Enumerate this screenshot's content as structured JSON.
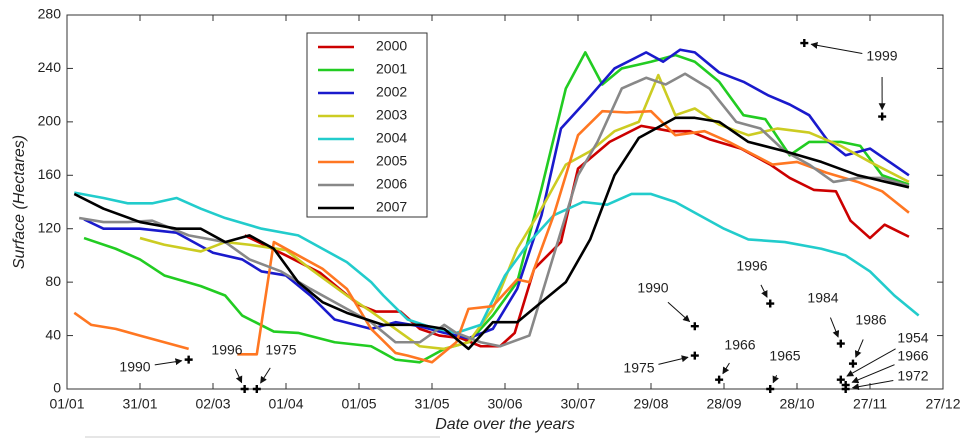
{
  "chart_data": {
    "type": "line",
    "xlabel": "Date over the years",
    "ylabel": "Surface (Hectares)",
    "xlim": [
      0,
      360
    ],
    "ylim": [
      0,
      280
    ],
    "xticks": [
      {
        "value": 0,
        "label": "01/01"
      },
      {
        "value": 30,
        "label": "31/01"
      },
      {
        "value": 60,
        "label": "02/03"
      },
      {
        "value": 90,
        "label": "01/04"
      },
      {
        "value": 120,
        "label": "01/05"
      },
      {
        "value": 150,
        "label": "31/05"
      },
      {
        "value": 180,
        "label": "30/06"
      },
      {
        "value": 210,
        "label": "30/07"
      },
      {
        "value": 240,
        "label": "29/08"
      },
      {
        "value": 270,
        "label": "28/09"
      },
      {
        "value": 300,
        "label": "28/10"
      },
      {
        "value": 330,
        "label": "27/11"
      },
      {
        "value": 360,
        "label": "27/12"
      }
    ],
    "yticks": [
      0,
      40,
      80,
      120,
      160,
      200,
      240,
      280
    ],
    "series": [
      {
        "name": "2000",
        "color": "#cc0000",
        "x": [
          73,
          90,
          104,
          112,
          120,
          127,
          137,
          145,
          153,
          162,
          170,
          178,
          184,
          192,
          203,
          210,
          223,
          236,
          248,
          256,
          264,
          277,
          289,
          297,
          307,
          316,
          322,
          330,
          336,
          346
        ],
        "values": [
          115,
          100,
          87,
          75,
          63,
          58,
          58,
          45,
          40,
          38,
          32,
          32,
          42,
          90,
          110,
          165,
          185,
          197,
          193,
          193,
          187,
          180,
          168,
          158,
          149,
          148,
          126,
          113,
          123,
          114
        ]
      },
      {
        "name": "2001",
        "color": "#22cc22",
        "x": [
          7,
          20,
          30,
          40,
          55,
          65,
          72,
          85,
          95,
          110,
          125,
          135,
          145,
          155,
          165,
          175,
          185,
          195,
          205,
          213,
          220,
          228,
          240,
          250,
          258,
          268,
          278,
          287,
          297,
          305,
          318,
          326,
          335,
          346
        ],
        "values": [
          113,
          105,
          97,
          85,
          77,
          70,
          55,
          43,
          42,
          35,
          32,
          22,
          20,
          30,
          35,
          55,
          80,
          150,
          225,
          252,
          228,
          240,
          245,
          250,
          245,
          230,
          205,
          202,
          175,
          185,
          185,
          182,
          160,
          153
        ]
      },
      {
        "name": "2002",
        "color": "#1a1acc",
        "x": [
          7,
          15,
          30,
          45,
          60,
          72,
          80,
          90,
          100,
          110,
          125,
          135,
          145,
          155,
          165,
          175,
          185,
          195,
          203,
          213,
          225,
          238,
          245,
          252,
          258,
          268,
          278,
          288,
          297,
          305,
          313,
          320,
          330,
          346
        ],
        "values": [
          127,
          120,
          120,
          117,
          102,
          97,
          88,
          85,
          70,
          52,
          45,
          50,
          47,
          42,
          38,
          45,
          75,
          130,
          195,
          215,
          240,
          252,
          245,
          254,
          252,
          237,
          230,
          220,
          213,
          205,
          185,
          175,
          180,
          160
        ]
      },
      {
        "name": "2003",
        "color": "#cccc22",
        "x": [
          30,
          40,
          55,
          65,
          75,
          90,
          100,
          115,
          125,
          135,
          145,
          155,
          165,
          175,
          185,
          195,
          205,
          215,
          225,
          235,
          243,
          250,
          258,
          268,
          280,
          292,
          305,
          318,
          330,
          346
        ],
        "values": [
          113,
          108,
          103,
          110,
          108,
          104,
          90,
          70,
          58,
          45,
          32,
          30,
          35,
          60,
          105,
          135,
          168,
          178,
          193,
          200,
          235,
          205,
          210,
          198,
          190,
          195,
          192,
          182,
          170,
          155
        ]
      },
      {
        "name": "2004",
        "color": "#22cccc",
        "x": [
          3,
          15,
          25,
          35,
          45,
          55,
          65,
          80,
          95,
          105,
          115,
          125,
          130,
          140,
          150,
          160,
          170,
          180,
          190,
          200,
          212,
          222,
          232,
          240,
          250,
          260,
          270,
          280,
          295,
          310,
          320,
          330,
          340,
          350
        ],
        "values": [
          147,
          143,
          139,
          139,
          143,
          135,
          128,
          120,
          115,
          105,
          95,
          80,
          70,
          52,
          46,
          42,
          48,
          85,
          110,
          130,
          140,
          138,
          146,
          146,
          140,
          130,
          120,
          112,
          110,
          105,
          100,
          88,
          70,
          55
        ]
      },
      {
        "name": "2005",
        "color": "#ff7722",
        "x": [
          3,
          10,
          20,
          30,
          40,
          50,
          60,
          70,
          78,
          85,
          95,
          105,
          115,
          125,
          135,
          140,
          150,
          160,
          165,
          175,
          185,
          190,
          200,
          210,
          220,
          230,
          240,
          250,
          262,
          272,
          290,
          300,
          312,
          325,
          335,
          346
        ],
        "values": [
          57,
          48,
          45,
          40,
          35,
          30,
          null,
          26,
          26,
          110,
          100,
          90,
          75,
          45,
          27,
          25,
          20,
          35,
          60,
          62,
          82,
          80,
          130,
          190,
          208,
          207,
          208,
          190,
          193,
          185,
          168,
          170,
          162,
          155,
          148,
          132
        ]
      },
      {
        "name": "2006",
        "color": "#888888",
        "x": [
          5,
          15,
          25,
          35,
          50,
          65,
          75,
          88,
          100,
          115,
          125,
          135,
          145,
          155,
          160,
          170,
          178,
          190,
          200,
          210,
          218,
          228,
          238,
          246,
          254,
          264,
          275,
          285,
          295,
          305,
          315,
          325,
          335,
          346
        ],
        "values": [
          128,
          125,
          125,
          126,
          115,
          110,
          97,
          88,
          75,
          60,
          50,
          35,
          35,
          48,
          42,
          35,
          32,
          40,
          100,
          160,
          185,
          225,
          233,
          228,
          236,
          225,
          200,
          195,
          178,
          168,
          155,
          158,
          158,
          152
        ]
      },
      {
        "name": "2007",
        "color": "#000000",
        "x": [
          3,
          15,
          30,
          45,
          55,
          65,
          75,
          85,
          95,
          105,
          115,
          130,
          145,
          155,
          165,
          175,
          185,
          195,
          205,
          215,
          225,
          235,
          250,
          258,
          268,
          280,
          295,
          310,
          325,
          346
        ],
        "values": [
          146,
          135,
          125,
          120,
          120,
          110,
          115,
          105,
          80,
          65,
          57,
          48,
          48,
          45,
          30,
          50,
          50,
          65,
          80,
          112,
          160,
          188,
          203,
          203,
          200,
          185,
          178,
          170,
          160,
          151
        ]
      }
    ],
    "annotations": [
      {
        "text": "1990",
        "x": [
          50
        ],
        "values": [
          22
        ]
      },
      {
        "text": "1996",
        "x": [
          73
        ],
        "values": [
          0
        ]
      },
      {
        "text": "1975",
        "x": [
          78
        ],
        "values": [
          0
        ]
      },
      {
        "text": "1990",
        "x": [
          258
        ],
        "values": [
          47
        ]
      },
      {
        "text": "1975",
        "x": [
          258
        ],
        "values": [
          25
        ]
      },
      {
        "text": "1996",
        "x": [
          289
        ],
        "values": [
          64
        ]
      },
      {
        "text": "1966",
        "x": [
          268
        ],
        "values": [
          7
        ]
      },
      {
        "text": "1965",
        "x": [
          289
        ],
        "values": [
          0
        ]
      },
      {
        "text": "1999",
        "x": [
          303,
          335
        ],
        "values": [
          259,
          204
        ]
      },
      {
        "text": "1984",
        "x": [
          318
        ],
        "values": [
          34
        ]
      },
      {
        "text": "1986",
        "x": [
          323
        ],
        "values": [
          19
        ]
      },
      {
        "text": "1954",
        "x": [
          318
        ],
        "values": [
          7
        ]
      },
      {
        "text": "1966",
        "x": [
          320
        ],
        "values": [
          3
        ]
      },
      {
        "text": "1972",
        "x": [
          320
        ],
        "values": [
          0
        ]
      }
    ]
  }
}
